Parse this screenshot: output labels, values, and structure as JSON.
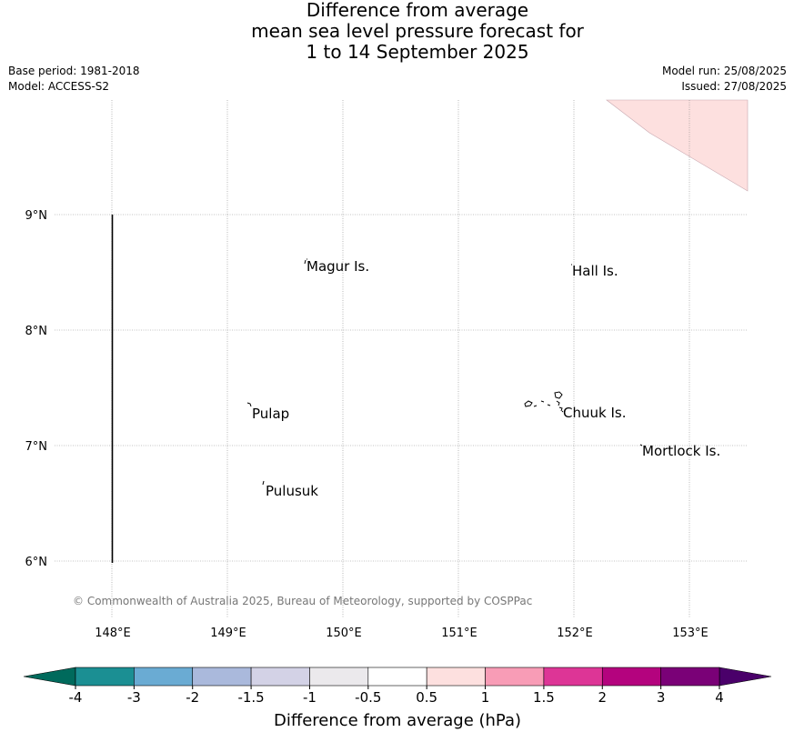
{
  "title": {
    "line1": "Difference from average",
    "line2": "mean sea level pressure forecast for",
    "line3": "1 to 14 September 2025"
  },
  "meta": {
    "base_period": "Base period: 1981-2018",
    "model": "Model: ACCESS-S2",
    "model_run": "Model run: 25/08/2025",
    "issued": "Issued: 27/08/2025"
  },
  "map": {
    "lon_labels": [
      "148°E",
      "149°E",
      "150°E",
      "151°E",
      "152°E",
      "153°E"
    ],
    "lat_labels": [
      "9°N",
      "8°N",
      "7°N",
      "6°N"
    ],
    "places": [
      {
        "name": "Magur Is."
      },
      {
        "name": "Hall Is."
      },
      {
        "name": "Pulap"
      },
      {
        "name": "Chuuk Is."
      },
      {
        "name": "Mortlock Is."
      },
      {
        "name": "Pulusuk"
      }
    ],
    "shaded_region_category": "0.5 to 1",
    "copyright": "© Commonwealth of Australia 2025, Bureau of Meteorology, supported by COSPPac"
  },
  "colorbar": {
    "label": "Difference from average (hPa)",
    "ticks": [
      "-4",
      "-3",
      "-2",
      "-1.5",
      "-1",
      "-0.5",
      "0.5",
      "1",
      "1.5",
      "2",
      "3",
      "4"
    ],
    "colors": [
      "#1b8f93",
      "#6aabd3",
      "#aab9dc",
      "#d3d2e6",
      "#ebe9ec",
      "#ffffff",
      "#fde0df",
      "#f89cb6",
      "#dd3596",
      "#b4037e",
      "#7a0177"
    ],
    "low_extend_color": "#006a5c",
    "high_extend_color": "#4a006a"
  }
}
